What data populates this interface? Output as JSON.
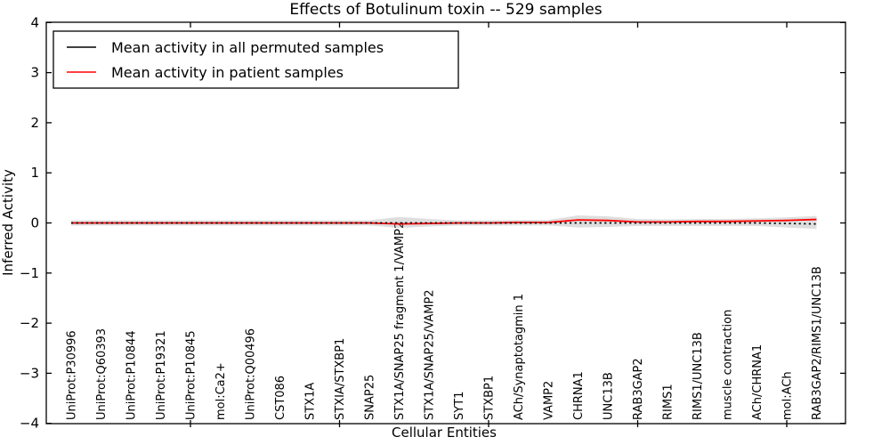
{
  "title": "Effects of Botulinum toxin -- 529 samples",
  "axes": {
    "xlabel": "Cellular Entities",
    "ylabel": "Inferred Activity"
  },
  "legend": {
    "items": [
      {
        "label": "Mean activity in all permuted samples",
        "color": "#000000"
      },
      {
        "label": "Mean activity in patient samples",
        "color": "#ff0000"
      }
    ]
  },
  "colors": {
    "permuted_line": "#000000",
    "patient_line": "#ff0000",
    "band": "#999999",
    "axis": "#000000",
    "background": "#ffffff"
  },
  "chart_data": {
    "type": "line",
    "title": "Effects of Botulinum toxin -- 529 samples",
    "xlabel": "Cellular Entities",
    "ylabel": "Inferred Activity",
    "ylim": [
      -4,
      4
    ],
    "y_ticks": [
      4,
      3,
      2,
      1,
      0,
      -1,
      -2,
      -3,
      -4
    ],
    "x_axis_tick_indices": [
      4,
      9,
      14,
      19,
      24
    ],
    "grid": false,
    "legend_position": "upper left",
    "categories": [
      "UniProt:P30996",
      "UniProt:Q60393",
      "UniProt:P10844",
      "UniProt:P19321",
      "UniProt:P10845",
      "mol:Ca2+",
      "UniProt:Q00496",
      "CST086",
      "STX1A",
      "STXIA/STXBP1",
      "SNAP25",
      "STX1A/SNAP25 fragment 1/VAMP2",
      "STX1A/SNAP25/VAMP2",
      "SYT1",
      "STXBP1",
      "ACh/Synaptotagmin 1",
      "VAMP2",
      "CHRNA1",
      "UNC13B",
      "RAB3GAP2",
      "RIMS1",
      "RIMS1/UNC13B",
      "muscle contraction",
      "ACh/CHRNA1",
      "mol:ACh",
      "RAB3GAP2/RIMS1/UNC13B"
    ],
    "series": [
      {
        "name": "Mean activity in all permuted samples",
        "color": "#000000",
        "style": "dashed",
        "values": [
          0,
          0,
          0,
          0,
          0,
          0,
          0,
          0,
          0,
          0,
          0,
          0,
          0,
          0,
          0,
          0,
          0,
          0,
          0,
          0,
          0,
          0,
          0,
          0,
          -0.01,
          -0.02
        ]
      },
      {
        "name": "Mean activity in patient samples",
        "color": "#ff0000",
        "style": "solid",
        "values": [
          0,
          0,
          0,
          0,
          0,
          0,
          0,
          0,
          0,
          0,
          0,
          -0.02,
          -0.01,
          0,
          0,
          0.01,
          0.01,
          0.06,
          0.05,
          0.02,
          0.02,
          0.03,
          0.03,
          0.04,
          0.05,
          0.07
        ]
      }
    ],
    "band": {
      "description": "light gray uncertainty envelope around mean activity",
      "color": "#d9d9d9",
      "upper": [
        0.05,
        0.05,
        0.05,
        0.05,
        0.05,
        0.05,
        0.05,
        0.05,
        0.05,
        0.05,
        0.05,
        0.12,
        0.08,
        0.05,
        0.05,
        0.06,
        0.06,
        0.15,
        0.13,
        0.08,
        0.07,
        0.08,
        0.08,
        0.09,
        0.11,
        0.14
      ],
      "lower": [
        -0.05,
        -0.05,
        -0.05,
        -0.05,
        -0.05,
        -0.05,
        -0.05,
        -0.05,
        -0.05,
        -0.05,
        -0.05,
        -0.1,
        -0.07,
        -0.05,
        -0.05,
        -0.05,
        -0.05,
        -0.09,
        -0.08,
        -0.06,
        -0.06,
        -0.06,
        -0.06,
        -0.06,
        -0.09,
        -0.12
      ]
    }
  }
}
